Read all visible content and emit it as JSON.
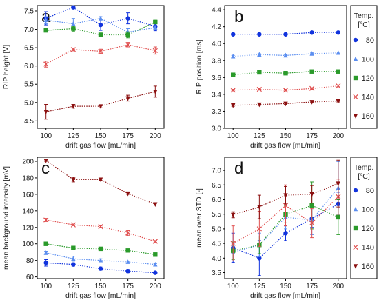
{
  "legend": {
    "title_line1": "Temp.",
    "title_line2": "[°C]",
    "entries": [
      "80",
      "100",
      "120",
      "140",
      "160"
    ]
  },
  "chart_data": [
    {
      "panel": "a",
      "type": "line",
      "xlabel": "drift gas flow [mL/min]",
      "ylabel": "RIP height [V]",
      "x": [
        100,
        125,
        150,
        175,
        200
      ],
      "xticks": [
        100,
        125,
        150,
        175,
        200
      ],
      "yticks": [
        "4.5",
        "5.0",
        "5.5",
        "6.0",
        "6.5",
        "7.0",
        "7.5"
      ],
      "ylim": [
        4.3,
        7.65
      ],
      "series": [
        {
          "name": "80",
          "color": "#1133dd",
          "marker": "circle",
          "values": [
            7.3,
            7.6,
            7.12,
            7.3,
            7.08
          ],
          "err": [
            0.18,
            0.04,
            0.15,
            0.15,
            0.12
          ]
        },
        {
          "name": "100",
          "color": "#5b8ef0",
          "marker": "triangle",
          "values": [
            7.25,
            7.15,
            7.3,
            6.92,
            7.05
          ],
          "err": [
            0.1,
            0.15,
            0.05,
            0.1,
            0.05
          ]
        },
        {
          "name": "120",
          "color": "#2a9a2a",
          "marker": "square",
          "values": [
            6.97,
            7.02,
            6.85,
            6.85,
            7.2
          ],
          "err": [
            0.04,
            0.07,
            0.05,
            0.08,
            0.05
          ]
        },
        {
          "name": "140",
          "color": "#e05050",
          "marker": "x",
          "values": [
            6.05,
            6.45,
            6.4,
            6.58,
            6.42
          ],
          "err": [
            0.08,
            0.04,
            0.06,
            0.06,
            0.1
          ]
        },
        {
          "name": "160",
          "color": "#8b1010",
          "marker": "tridown",
          "values": [
            4.75,
            4.9,
            4.9,
            5.12,
            5.3
          ],
          "err": [
            0.2,
            0.05,
            0.04,
            0.08,
            0.15
          ]
        }
      ]
    },
    {
      "panel": "b",
      "type": "line",
      "xlabel": "drift gas flow [mL/min]",
      "ylabel": "RIP position [ms]",
      "x": [
        100,
        125,
        150,
        175,
        200
      ],
      "xticks": [
        100,
        125,
        150,
        175,
        200
      ],
      "yticks": [
        "3.0",
        "3.2",
        "3.4",
        "3.6",
        "3.8",
        "4.0",
        "4.2",
        "4.4"
      ],
      "ylim": [
        3.0,
        4.45
      ],
      "series": [
        {
          "name": "80",
          "color": "#1133dd",
          "marker": "circle",
          "values": [
            4.11,
            4.11,
            4.11,
            4.13,
            4.13
          ],
          "err": [
            0.01,
            0.01,
            0.01,
            0.01,
            0.01
          ]
        },
        {
          "name": "100",
          "color": "#5b8ef0",
          "marker": "triangle",
          "values": [
            3.85,
            3.87,
            3.86,
            3.88,
            3.89
          ],
          "err": [
            0.01,
            0.01,
            0.01,
            0.01,
            0.01
          ]
        },
        {
          "name": "120",
          "color": "#2a9a2a",
          "marker": "square",
          "values": [
            3.63,
            3.66,
            3.65,
            3.67,
            3.67
          ],
          "err": [
            0.01,
            0.01,
            0.01,
            0.01,
            0.01
          ]
        },
        {
          "name": "140",
          "color": "#e05050",
          "marker": "x",
          "values": [
            3.45,
            3.46,
            3.45,
            3.47,
            3.5
          ],
          "err": [
            0.01,
            0.01,
            0.01,
            0.01,
            0.01
          ]
        },
        {
          "name": "160",
          "color": "#8b1010",
          "marker": "tridown",
          "values": [
            3.27,
            3.28,
            3.29,
            3.31,
            3.32
          ],
          "err": [
            0.01,
            0.01,
            0.01,
            0.01,
            0.01
          ]
        }
      ]
    },
    {
      "panel": "c",
      "type": "line",
      "xlabel": "drift gas flow [mL/min]",
      "ylabel": "mean background intensity [mV]",
      "x": [
        100,
        125,
        150,
        175,
        200
      ],
      "xticks": [
        100,
        125,
        150,
        175,
        200
      ],
      "yticks": [
        "60",
        "80",
        "100",
        "120",
        "140",
        "160",
        "180",
        "200"
      ],
      "ylim": [
        58,
        205
      ],
      "series": [
        {
          "name": "80",
          "color": "#1133dd",
          "marker": "circle",
          "values": [
            77,
            75,
            70,
            67,
            65
          ],
          "err": [
            4,
            2,
            2,
            2,
            1
          ]
        },
        {
          "name": "100",
          "color": "#5b8ef0",
          "marker": "triangle",
          "values": [
            89,
            82,
            80,
            78,
            75
          ],
          "err": [
            2,
            3,
            2,
            1,
            1
          ]
        },
        {
          "name": "120",
          "color": "#2a9a2a",
          "marker": "square",
          "values": [
            100,
            95,
            94,
            92,
            87
          ],
          "err": [
            1,
            1,
            1,
            1,
            1
          ]
        },
        {
          "name": "140",
          "color": "#e05050",
          "marker": "x",
          "values": [
            129,
            123,
            121,
            113,
            103
          ],
          "err": [
            2,
            1,
            1,
            3,
            1
          ]
        },
        {
          "name": "160",
          "color": "#8b1010",
          "marker": "tridown",
          "values": [
            201,
            178,
            178,
            161,
            148
          ],
          "err": [
            1,
            3,
            1,
            1,
            1
          ]
        }
      ]
    },
    {
      "panel": "d",
      "type": "line",
      "xlabel": "drift gas flow [mL/min]",
      "ylabel": "mean over STD [-]",
      "x": [
        100,
        125,
        150,
        175,
        200
      ],
      "xticks": [
        100,
        125,
        150,
        175,
        200
      ],
      "yticks": [
        "3.5",
        "4.0",
        "4.5",
        "5.0",
        "5.5",
        "6.0",
        "6.5",
        "7.0"
      ],
      "ylim": [
        3.3,
        7.45
      ],
      "series": [
        {
          "name": "80",
          "color": "#1133dd",
          "marker": "circle",
          "values": [
            4.35,
            4.0,
            4.85,
            5.35,
            5.85
          ],
          "err": [
            0.5,
            0.6,
            0.25,
            0.3,
            0.4
          ]
        },
        {
          "name": "100",
          "color": "#5b8ef0",
          "marker": "triangle",
          "values": [
            4.2,
            4.45,
            5.4,
            5.3,
            6.4
          ],
          "err": [
            0.3,
            0.4,
            0.4,
            0.5,
            0.9
          ]
        },
        {
          "name": "120",
          "color": "#2a9a2a",
          "marker": "square",
          "values": [
            4.25,
            4.45,
            5.5,
            5.8,
            5.4
          ],
          "err": [
            0.3,
            0.3,
            0.3,
            0.8,
            0.6
          ]
        },
        {
          "name": "140",
          "color": "#e05050",
          "marker": "x",
          "values": [
            4.5,
            5.0,
            5.8,
            5.2,
            6.1
          ],
          "err": [
            0.6,
            0.6,
            0.7,
            0.5,
            0.6
          ]
        },
        {
          "name": "160",
          "color": "#8b1010",
          "marker": "tridown",
          "values": [
            5.48,
            5.75,
            6.15,
            6.18,
            6.55
          ],
          "err": [
            0.1,
            0.4,
            0.3,
            0.3,
            0.8
          ]
        }
      ]
    }
  ]
}
